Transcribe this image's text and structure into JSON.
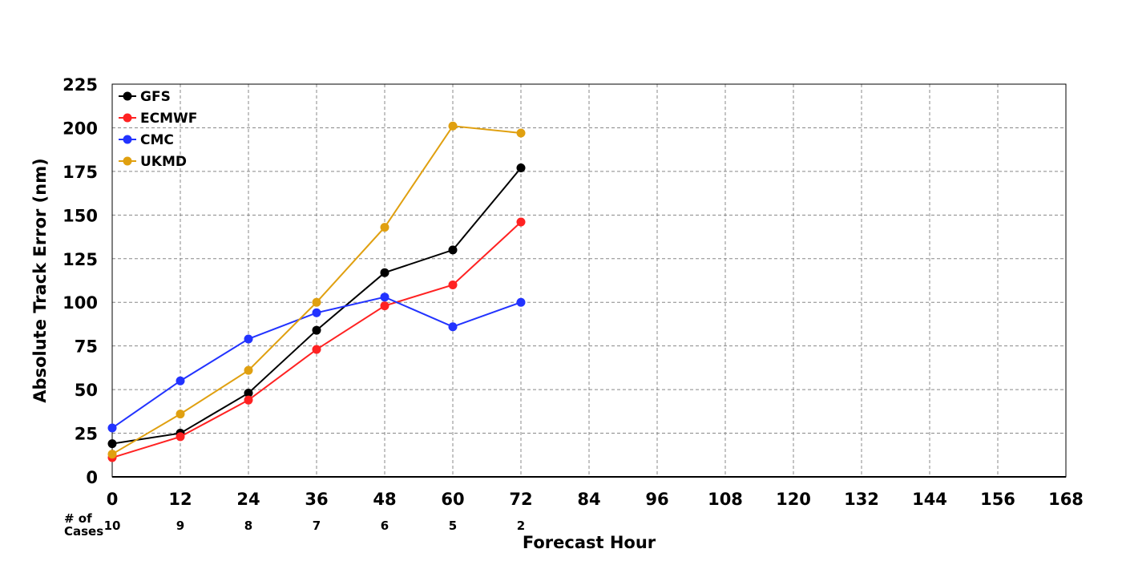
{
  "chart_data": {
    "type": "line",
    "xlabel": "Forecast Hour",
    "ylabel": "Absolute Track Error (nm)",
    "xlim": [
      0,
      168
    ],
    "ylim": [
      0,
      225
    ],
    "x_ticks": [
      0,
      12,
      24,
      36,
      48,
      60,
      72,
      84,
      96,
      108,
      120,
      132,
      144,
      156,
      168
    ],
    "y_ticks": [
      0,
      25,
      50,
      75,
      100,
      125,
      150,
      175,
      200,
      225
    ],
    "grid": true,
    "legend_position": "top-left",
    "x": [
      0,
      12,
      24,
      36,
      48,
      60,
      72
    ],
    "series": [
      {
        "name": "GFS",
        "color": "#000000",
        "values": [
          19,
          25,
          48,
          84,
          117,
          130,
          177
        ]
      },
      {
        "name": "ECMWF",
        "color": "#ff2222",
        "values": [
          11,
          23,
          44,
          73,
          98,
          110,
          146
        ]
      },
      {
        "name": "CMC",
        "color": "#2233ff",
        "values": [
          28,
          55,
          79,
          94,
          103,
          86,
          100
        ]
      },
      {
        "name": "UKMD",
        "color": "#e0a010",
        "values": [
          13,
          36,
          61,
          100,
          143,
          201,
          197
        ]
      }
    ],
    "cases": {
      "label_line1": "# of",
      "label_line2": "Cases",
      "hours": [
        0,
        12,
        24,
        36,
        48,
        60,
        72
      ],
      "values": [
        "10",
        "9",
        "8",
        "7",
        "6",
        "5",
        "2"
      ]
    }
  }
}
